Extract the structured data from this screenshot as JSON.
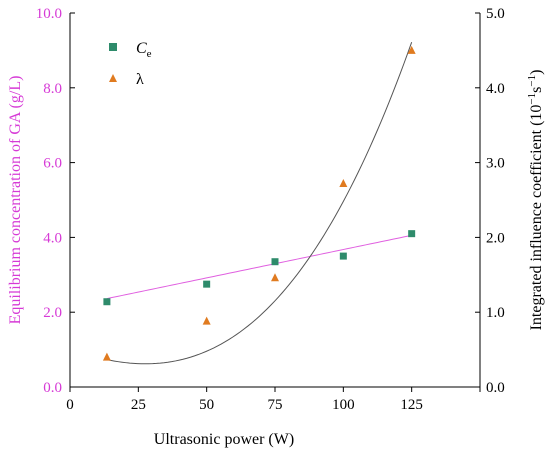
{
  "chart_data": {
    "type": "scatter",
    "xlabel": "Ultrasonic power (W)",
    "ylabel_left": "Equilibrium concentration of GA  (g/L)",
    "ylabel_right": "Integrated influence coefficient (10",
    "ylabel_right_exp": "−1",
    "ylabel_right_unit": "s",
    "ylabel_right_unit_exp": "−1",
    "ylabel_right_close": ")",
    "xlim": [
      0,
      150
    ],
    "ylim_left": [
      0,
      10
    ],
    "ylim_right": [
      0,
      5
    ],
    "x_ticks": [
      "0",
      "25",
      "50",
      "75",
      "100",
      "125"
    ],
    "x_tick_values": [
      0,
      25,
      50,
      75,
      100,
      125
    ],
    "y_left_ticks": [
      "0.0",
      "2.0",
      "4.0",
      "6.0",
      "8.0",
      "10.0"
    ],
    "y_left_tick_values": [
      0,
      2,
      4,
      6,
      8,
      10
    ],
    "y_right_ticks": [
      "0.0",
      "1.0",
      "2.0",
      "3.0",
      "4.0",
      "5.0"
    ],
    "y_right_tick_values": [
      0,
      1,
      2,
      3,
      4,
      5
    ],
    "legend": {
      "position": "top-left",
      "entries": [
        {
          "label_main": "C",
          "label_sub": "e",
          "marker": "square",
          "color": "#2e8b6b"
        },
        {
          "label_main": "λ",
          "label_sub": "",
          "marker": "triangle",
          "color": "#e07b20"
        }
      ]
    },
    "series": [
      {
        "axis": "left",
        "marker": "square",
        "color": "#2e8b6b",
        "x": [
          13.5,
          50,
          75,
          100,
          125
        ],
        "y": [
          2.28,
          2.75,
          3.35,
          3.5,
          4.1
        ]
      },
      {
        "axis": "right",
        "marker": "triangle",
        "color": "#e07b20",
        "x": [
          13.5,
          50,
          75,
          100,
          125
        ],
        "y": [
          0.4,
          0.88,
          1.46,
          2.72,
          4.5
        ]
      }
    ],
    "fits": [
      {
        "axis": "left",
        "kind": "linear",
        "color": "#e060e0",
        "x_range": [
          13.5,
          125
        ],
        "coef": [
          2.159,
          0.01517
        ]
      },
      {
        "axis": "right",
        "kind": "cubic",
        "color": "#555555",
        "x_range": [
          13.5,
          125
        ],
        "coef": [
          0.5067,
          -0.01304,
          0.0001713,
          1.565e-06
        ]
      }
    ],
    "grid": false
  }
}
